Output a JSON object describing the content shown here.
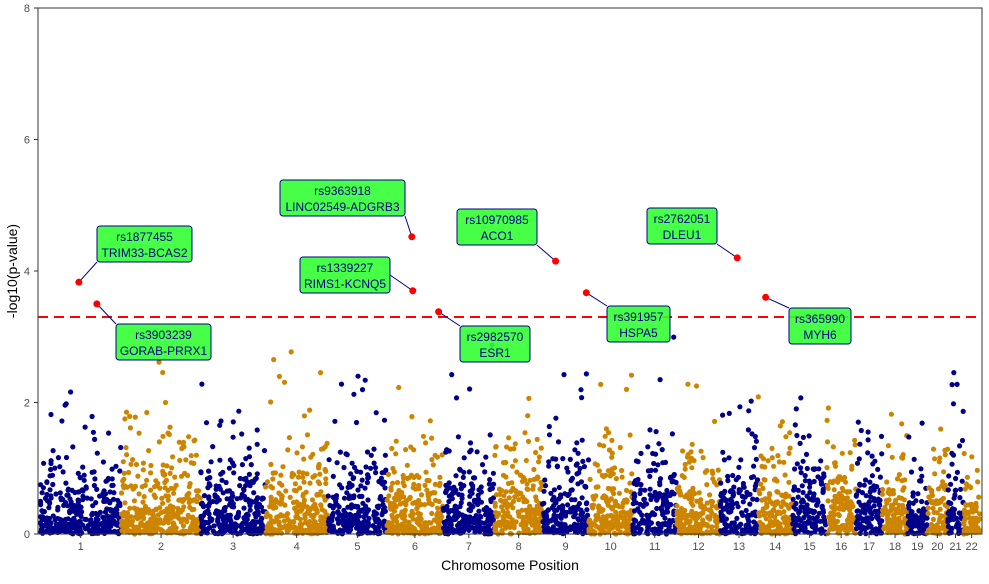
{
  "chart_data": {
    "type": "scatter",
    "subtype": "manhattan",
    "title": "",
    "xlabel": "Chromosome Position",
    "ylabel": "-log10(p-value)",
    "ylim": [
      0,
      8
    ],
    "yticks": [
      0,
      2,
      4,
      6,
      8
    ],
    "categories": [
      "1",
      "2",
      "3",
      "4",
      "5",
      "6",
      "7",
      "8",
      "9",
      "10",
      "11",
      "12",
      "13",
      "14",
      "15",
      "16",
      "17",
      "18",
      "19",
      "20",
      "21",
      "22"
    ],
    "grid": false,
    "threshold": {
      "value": 3.3,
      "color": "#FF0000",
      "style": "dashed"
    },
    "colors": {
      "odd_chromosome": "#00008B",
      "even_chromosome": "#CD8500",
      "highlight": "#FF0000",
      "label_fill": "#33FF33",
      "label_border": "#00008B",
      "label_text": "#00008B"
    },
    "highlighted_snps": [
      {
        "snp": "rs1877455",
        "gene": "TRIM33-BCAS2",
        "chromosome": 1,
        "position_mb": 119,
        "neg_log10_p": 3.83
      },
      {
        "snp": "rs3903239",
        "gene": "GORAB-PRRX1",
        "chromosome": 1,
        "position_mb": 174,
        "neg_log10_p": 3.5
      },
      {
        "snp": "rs9363918",
        "gene": "LINC02549-ADGRB3",
        "chromosome": 6,
        "position_mb": 76,
        "neg_log10_p": 4.52
      },
      {
        "snp": "rs1339227",
        "gene": "RIMS1-KCNQ5",
        "chromosome": 6,
        "position_mb": 79,
        "neg_log10_p": 3.7
      },
      {
        "snp": "rs2982570",
        "gene": "ESR1",
        "chromosome": 6,
        "position_mb": 158,
        "neg_log10_p": 3.38
      },
      {
        "snp": "rs10970985",
        "gene": "ACO1",
        "chromosome": 9,
        "position_mb": 40,
        "neg_log10_p": 4.15
      },
      {
        "snp": "rs391957",
        "gene": "HSPA5",
        "chromosome": 9,
        "position_mb": 134,
        "neg_log10_p": 3.67
      },
      {
        "snp": "rs2762051",
        "gene": "DLEU1",
        "chromosome": 13,
        "position_mb": 52,
        "neg_log10_p": 4.2
      },
      {
        "snp": "rs365990",
        "gene": "MYH6",
        "chromosome": 14,
        "position_mb": 24,
        "neg_log10_p": 3.6
      }
    ]
  }
}
